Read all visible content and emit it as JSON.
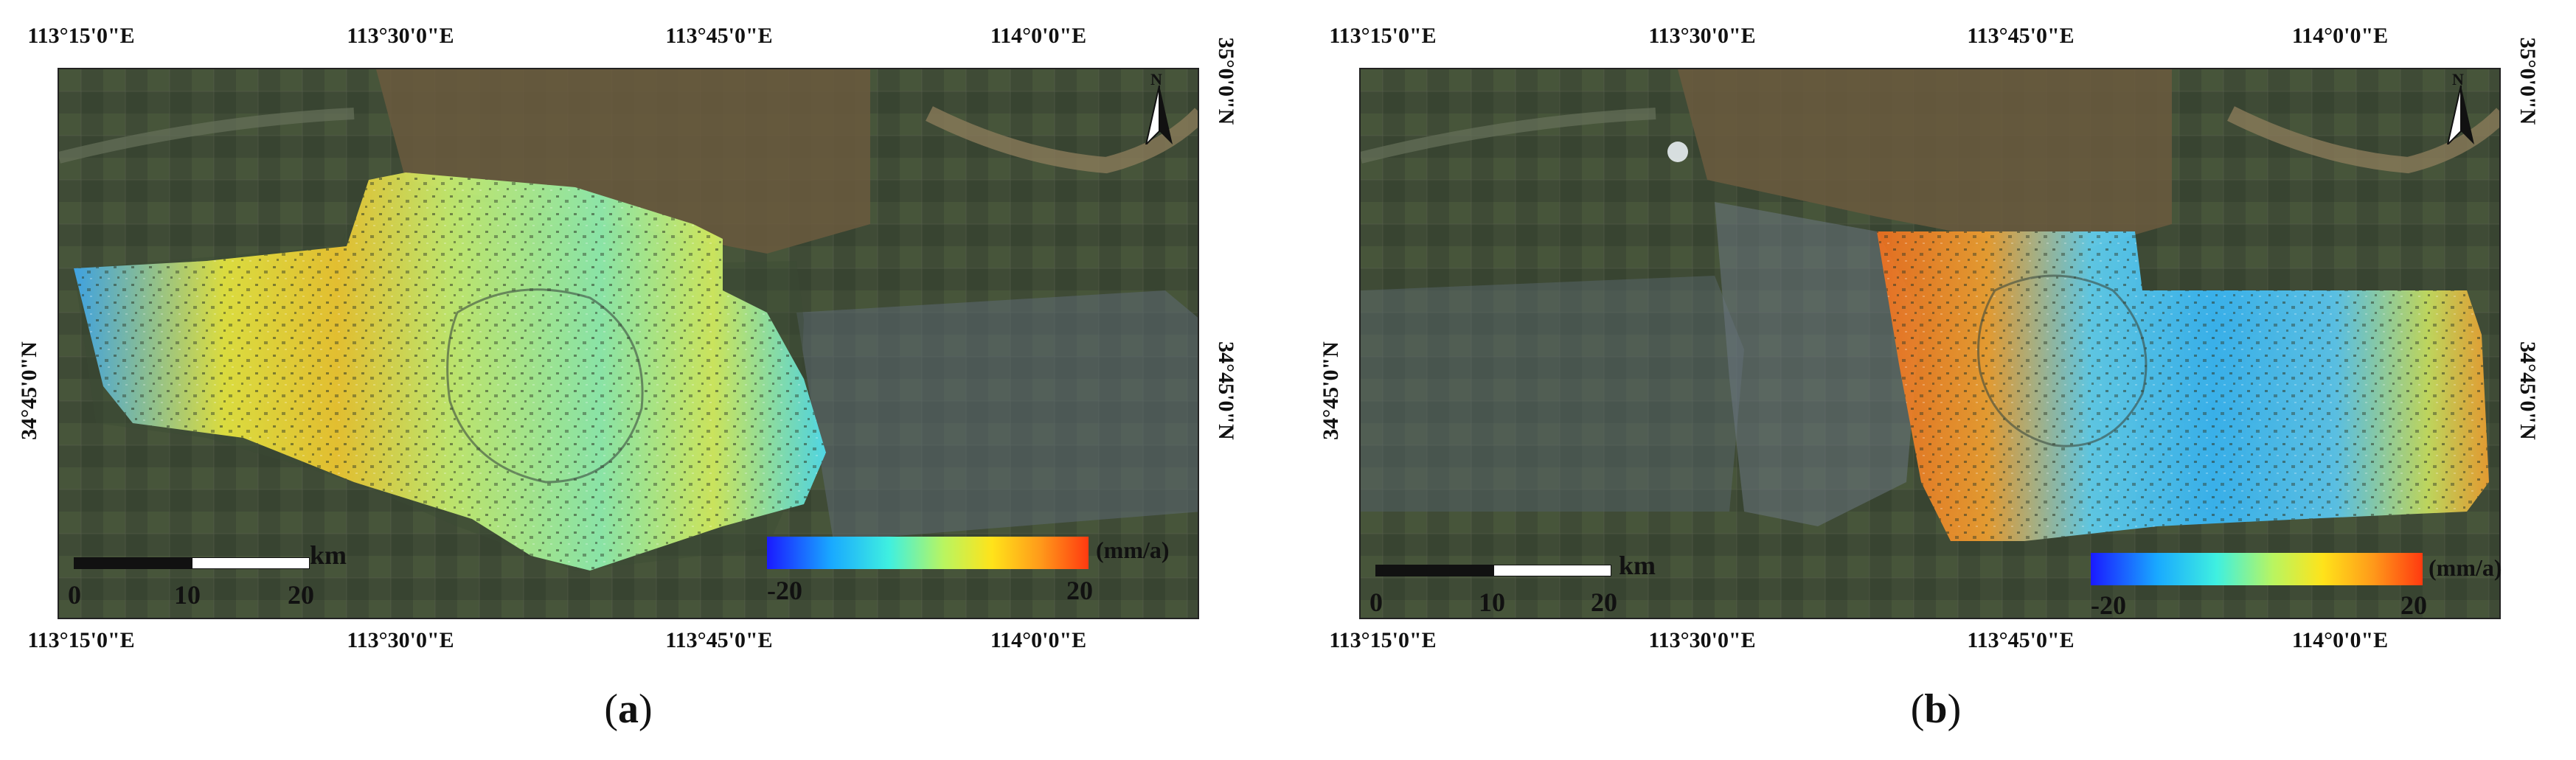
{
  "panels": [
    {
      "caption": "a",
      "ticks_top": [
        "113°15'0\"E",
        "113°30'0\"E",
        "113°45'0\"E",
        "114°0'0\"E"
      ],
      "ticks_bottom": [
        "113°15'0\"E",
        "113°30'0\"E",
        "113°45'0\"E",
        "114°0'0\"E"
      ],
      "ticks_left": [
        "34°45'0\"N"
      ],
      "ticks_right": [
        "35°0'0\"N",
        "34°45'0\"N"
      ],
      "scalebar": {
        "unit": "km",
        "labels": [
          "0",
          "10",
          "20"
        ]
      },
      "colorbar": {
        "min": "-20",
        "max": "20",
        "unit": "(mm/a)"
      },
      "north": "N"
    },
    {
      "caption": "b",
      "ticks_top": [
        "113°15'0\"E",
        "113°30'0\"E",
        "113°45'0\"E",
        "114°0'0\"E"
      ],
      "ticks_bottom": [
        "113°15'0\"E",
        "113°30'0\"E",
        "113°45'0\"E",
        "114°0'0\"E"
      ],
      "ticks_left": [
        "34°45'0\"N"
      ],
      "ticks_right": [
        "35°0'0\"N",
        "34°45'0\"N"
      ],
      "scalebar": {
        "unit": "km",
        "labels": [
          "0",
          "10",
          "20"
        ]
      },
      "colorbar": {
        "min": "-20",
        "max": "20",
        "unit": "(mm/a)"
      },
      "north": "N"
    }
  ],
  "colors": {
    "colorbar": [
      "#1a1aff",
      "#19a9ff",
      "#3ff0e0",
      "#b9f560",
      "#ffe31a",
      "#ff9a1a",
      "#ff3a10"
    ],
    "basemap": "#3e4a35"
  }
}
